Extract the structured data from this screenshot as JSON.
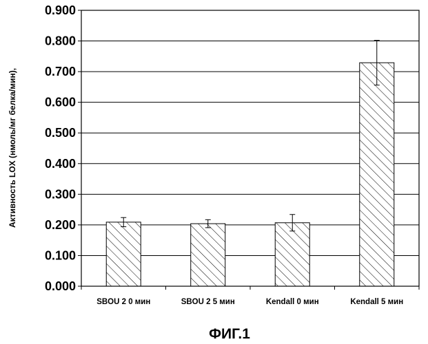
{
  "chart_data": {
    "type": "bar",
    "title": "",
    "xlabel": "",
    "ylabel": "Активность LOX (нмоль/мг белка/мин),",
    "ylim": [
      0,
      0.9
    ],
    "yticks": [
      "0.000",
      "0.100",
      "0.200",
      "0.300",
      "0.400",
      "0.500",
      "0.600",
      "0.700",
      "0.800",
      "0.900"
    ],
    "grid": true,
    "bar_fill": "diagonal-hatch",
    "categories": [
      "SBOU 2 0 мин",
      "SBOU 2  5 мин",
      "Kendall 0 мин",
      "Kendall 5 мин"
    ],
    "values": [
      0.209,
      0.204,
      0.207,
      0.729
    ],
    "error": [
      0.015,
      0.013,
      0.027,
      0.073
    ],
    "caption": "ФИГ.1"
  }
}
